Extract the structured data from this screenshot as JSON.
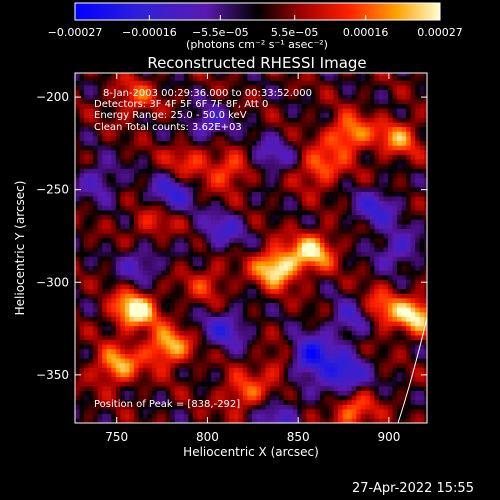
{
  "chart_data": {
    "type": "heatmap",
    "title": "Reconstructed RHESSI Image",
    "xlabel": "Heliocentric X (arcsec)",
    "ylabel": "Heliocentric Y (arcsec)",
    "xlim": [
      727,
      921
    ],
    "ylim": [
      -376,
      -187
    ],
    "x_ticks": [
      750,
      800,
      850,
      900
    ],
    "x_tick_labels": [
      "750",
      "800",
      "850",
      "900"
    ],
    "y_ticks": [
      -200,
      -250,
      -300,
      -350
    ],
    "y_tick_labels": [
      "−200",
      "−250",
      "−300",
      "−350"
    ],
    "colorbar": {
      "range": [
        -0.00027,
        0.00027
      ],
      "ticks": [
        -0.00027,
        -0.00016,
        -5.5e-05,
        5.5e-05,
        0.00016,
        0.00027
      ],
      "tick_labels": [
        "−0.00027",
        "−0.00016",
        "−5.5e−05",
        "5.5e−05",
        "0.00016",
        "0.00027"
      ],
      "unit_label": "(photons cm⁻² s⁻¹ asec⁻²)"
    },
    "info_lines": [
      "8-Jan-2003 00:29:36.000 to 00:33:52.000",
      "Detectors: 3F 4F 5F 6F 7F 8F, Att 0",
      "Energy Range: 25.0 - 50.0 keV",
      "Clean     Total counts: 3.62E+03"
    ],
    "peak_label": "Position of Peak = [838,-292]",
    "peak_position": [
      838,
      -292
    ],
    "hot_regions": [
      {
        "x": 760,
        "y": -315,
        "value": 0.00027
      },
      {
        "x": 778,
        "y": -335,
        "value": 0.00022
      },
      {
        "x": 750,
        "y": -345,
        "value": 0.0002
      },
      {
        "x": 838,
        "y": -292,
        "value": 0.00027
      },
      {
        "x": 858,
        "y": -283,
        "value": 0.00022
      },
      {
        "x": 878,
        "y": -220,
        "value": 0.0002
      },
      {
        "x": 862,
        "y": -238,
        "value": 0.00016
      },
      {
        "x": 905,
        "y": -222,
        "value": 0.00016
      },
      {
        "x": 812,
        "y": -240,
        "value": 0.00014
      },
      {
        "x": 790,
        "y": -233,
        "value": 0.00012
      },
      {
        "x": 760,
        "y": -200,
        "value": 0.00012
      },
      {
        "x": 915,
        "y": -318,
        "value": 0.00022
      },
      {
        "x": 895,
        "y": -315,
        "value": 0.00016
      },
      {
        "x": 880,
        "y": -370,
        "value": 0.00016
      },
      {
        "x": 820,
        "y": -360,
        "value": 0.00014
      },
      {
        "x": 770,
        "y": -268,
        "value": 0.0001
      },
      {
        "x": 840,
        "y": -345,
        "value": 0.0001
      },
      {
        "x": 800,
        "y": -300,
        "value": 0.0001
      }
    ],
    "cold_regions": [
      {
        "x": 857,
        "y": -340,
        "value": -0.00027
      },
      {
        "x": 875,
        "y": -350,
        "value": -0.00022
      },
      {
        "x": 810,
        "y": -325,
        "value": -0.00016
      },
      {
        "x": 780,
        "y": -252,
        "value": -0.00016
      },
      {
        "x": 808,
        "y": -272,
        "value": -0.00014
      },
      {
        "x": 893,
        "y": -260,
        "value": -0.00016
      },
      {
        "x": 905,
        "y": -282,
        "value": -0.00014
      },
      {
        "x": 800,
        "y": -215,
        "value": -0.00014
      },
      {
        "x": 835,
        "y": -232,
        "value": -0.00012
      },
      {
        "x": 840,
        "y": -372,
        "value": -0.00012
      },
      {
        "x": 763,
        "y": -290,
        "value": -0.00012
      },
      {
        "x": 740,
        "y": -245,
        "value": -0.00012
      },
      {
        "x": 880,
        "y": -320,
        "value": -0.00016
      }
    ],
    "grid": false
  },
  "footer": {
    "date": "27-Apr-2022 15:55"
  }
}
